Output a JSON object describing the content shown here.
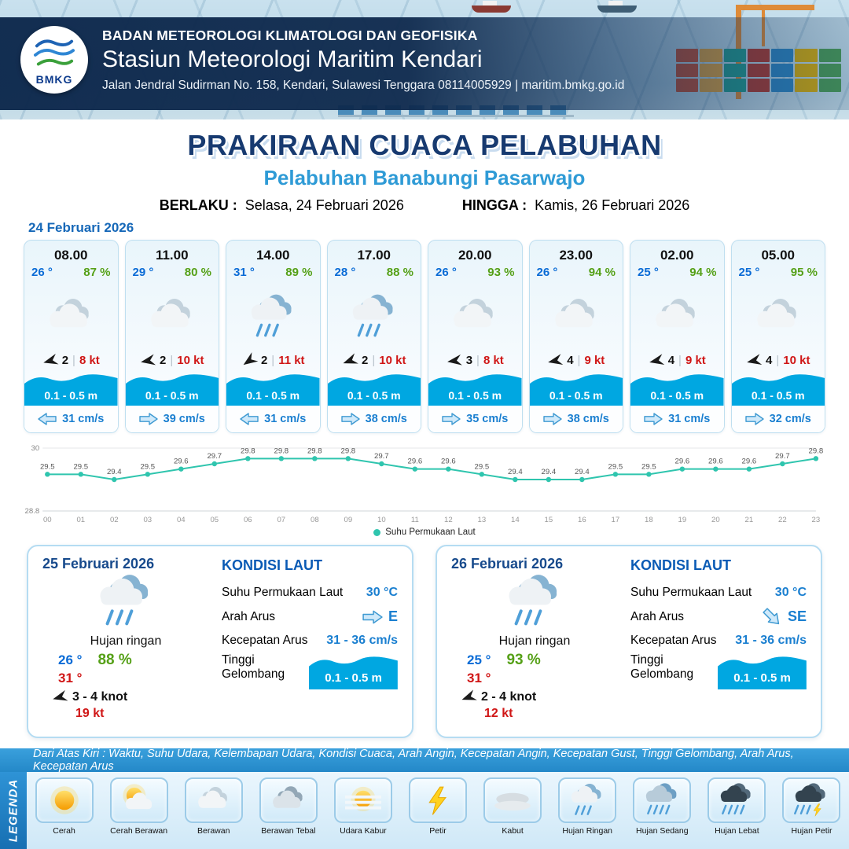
{
  "colors": {
    "navy": "#13315c",
    "title_blue": "#173a70",
    "accent_blue": "#2f9bd6",
    "temp_blue": "#0a6bd6",
    "humidity_green": "#55a017",
    "red": "#d01616",
    "wave_blue": "#00a7e1",
    "current_blue": "#1a7fd0",
    "chart_teal": "#2fc5ae"
  },
  "header": {
    "logo_text": "BMKG",
    "agency": "BADAN METEOROLOGI KLIMATOLOGI DAN GEOFISIKA",
    "station": "Stasiun Meteorologi Maritim Kendari",
    "address": "Jalan Jendral Sudirman No. 158, Kendari, Sulawesi Tenggara  08114005929 | maritim.bmkg.go.id"
  },
  "title": {
    "main": "PRAKIRAAN CUACA PELABUHAN",
    "port": "Pelabuhan Banabungi Pasarwajo",
    "berlaku_label": "BERLAKU :",
    "berlaku_value": "Selasa, 24 Februari 2026",
    "hingga_label": "HINGGA :",
    "hingga_value": "Kamis, 26 Februari 2026"
  },
  "forecast": {
    "date": "24 Februari 2026",
    "cards": [
      {
        "time": "08.00",
        "temp": "26 °",
        "humidity": "87 %",
        "icon": "berawan",
        "wind_rot": -15,
        "wind_speed": "2",
        "gust": "8 kt",
        "wave": "0.1 - 0.5 m",
        "current_rot": 180,
        "current": "31 cm/s"
      },
      {
        "time": "11.00",
        "temp": "29 °",
        "humidity": "80 %",
        "icon": "berawan",
        "wind_rot": -10,
        "wind_speed": "2",
        "gust": "10 kt",
        "wave": "0.1 - 0.5 m",
        "current_rot": 0,
        "current": "39 cm/s"
      },
      {
        "time": "14.00",
        "temp": "31 °",
        "humidity": "89 %",
        "icon": "hujan-ringan",
        "wind_rot": -35,
        "wind_speed": "2",
        "gust": "11 kt",
        "wave": "0.1 - 0.5 m",
        "current_rot": 180,
        "current": "31 cm/s"
      },
      {
        "time": "17.00",
        "temp": "28 °",
        "humidity": "88 %",
        "icon": "hujan-ringan",
        "wind_rot": -20,
        "wind_speed": "2",
        "gust": "10 kt",
        "wave": "0.1 - 0.5 m",
        "current_rot": 0,
        "current": "38 cm/s"
      },
      {
        "time": "20.00",
        "temp": "26 °",
        "humidity": "93 %",
        "icon": "berawan",
        "wind_rot": -8,
        "wind_speed": "3",
        "gust": "8 kt",
        "wave": "0.1 - 0.5 m",
        "current_rot": 0,
        "current": "35 cm/s"
      },
      {
        "time": "23.00",
        "temp": "26 °",
        "humidity": "94 %",
        "icon": "berawan",
        "wind_rot": -12,
        "wind_speed": "4",
        "gust": "9 kt",
        "wave": "0.1 - 0.5 m",
        "current_rot": 0,
        "current": "38 cm/s"
      },
      {
        "time": "02.00",
        "temp": "25 °",
        "humidity": "94 %",
        "icon": "berawan",
        "wind_rot": -12,
        "wind_speed": "4",
        "gust": "9 kt",
        "wave": "0.1 - 0.5 m",
        "current_rot": 0,
        "current": "31 cm/s"
      },
      {
        "time": "05.00",
        "temp": "25 °",
        "humidity": "95 %",
        "icon": "berawan",
        "wind_rot": -12,
        "wind_speed": "4",
        "gust": "10 kt",
        "wave": "0.1 - 0.5 m",
        "current_rot": 0,
        "current": "32 cm/s"
      }
    ]
  },
  "chart_data": {
    "type": "line",
    "title": "Suhu Permukaan Laut",
    "x": [
      "00",
      "01",
      "02",
      "03",
      "04",
      "05",
      "06",
      "07",
      "08",
      "09",
      "10",
      "11",
      "12",
      "13",
      "14",
      "15",
      "16",
      "17",
      "18",
      "19",
      "20",
      "21",
      "22",
      "23"
    ],
    "values": [
      29.5,
      29.5,
      29.4,
      29.5,
      29.6,
      29.7,
      29.8,
      29.8,
      29.8,
      29.8,
      29.7,
      29.6,
      29.6,
      29.5,
      29.4,
      29.4,
      29.4,
      29.5,
      29.5,
      29.6,
      29.6,
      29.6,
      29.7,
      29.8
    ],
    "ylim": [
      28.8,
      30
    ],
    "xlabel": "",
    "ylabel": "",
    "grid": true,
    "legend": "Suhu Permukaan Laut",
    "legend_position": "bottom",
    "line_color": "#2fc5ae"
  },
  "day_cards": [
    {
      "date": "25 Februari 2026",
      "icon": "hujan-ringan",
      "condition": "Hujan ringan",
      "temp_min": "26 °",
      "humidity": "88 %",
      "temp_max": "31 °",
      "wind_rot": -15,
      "wind": "3 - 4 knot",
      "gust": "19 kt",
      "sea": {
        "heading": "KONDISI LAUT",
        "sst_label": "Suhu Permukaan Laut",
        "sst_value": "30 °C",
        "current_dir_label": "Arah Arus",
        "current_dir_value": "E",
        "current_dir_rot": 0,
        "current_speed_label": "Kecepatan Arus",
        "current_speed_value": "31 - 36 cm/s",
        "wave_label": "Tinggi Gelombang",
        "wave_value": "0.1 - 0.5 m"
      }
    },
    {
      "date": "26 Februari 2026",
      "icon": "hujan-ringan",
      "condition": "Hujan ringan",
      "temp_min": "25 °",
      "humidity": "93 %",
      "temp_max": "31 °",
      "wind_rot": -20,
      "wind": "2 - 4 knot",
      "gust": "12 kt",
      "sea": {
        "heading": "KONDISI LAUT",
        "sst_label": "Suhu Permukaan Laut",
        "sst_value": "30 °C",
        "current_dir_label": "Arah Arus",
        "current_dir_value": "SE",
        "current_dir_rot": 45,
        "current_speed_label": "Kecepatan Arus",
        "current_speed_value": "31 - 36 cm/s",
        "wave_label": "Tinggi Gelombang",
        "wave_value": "0.1 - 0.5 m"
      }
    }
  ],
  "legend": {
    "banner": "Dari Atas Kiri : Waktu, Suhu Udara, Kelembapan Udara, Kondisi Cuaca, Arah Angin, Kecepatan Angin, Kecepatan Gust, Tinggi Gelombang, Arah Arus, Kecepatan Arus",
    "vertical_label": "LEGENDA",
    "items": [
      {
        "label": "Cerah",
        "icon": "cerah"
      },
      {
        "label": "Cerah Berawan",
        "icon": "cerah-berawan"
      },
      {
        "label": "Berawan",
        "icon": "berawan"
      },
      {
        "label": "Berawan Tebal",
        "icon": "berawan-tebal"
      },
      {
        "label": "Udara Kabur",
        "icon": "udara-kabur"
      },
      {
        "label": "Petir",
        "icon": "petir"
      },
      {
        "label": "Kabut",
        "icon": "kabut"
      },
      {
        "label": "Hujan Ringan",
        "icon": "hujan-ringan"
      },
      {
        "label": "Hujan Sedang",
        "icon": "hujan-sedang"
      },
      {
        "label": "Hujan Lebat",
        "icon": "hujan-lebat"
      },
      {
        "label": "Hujan Petir",
        "icon": "hujan-petir"
      }
    ]
  }
}
